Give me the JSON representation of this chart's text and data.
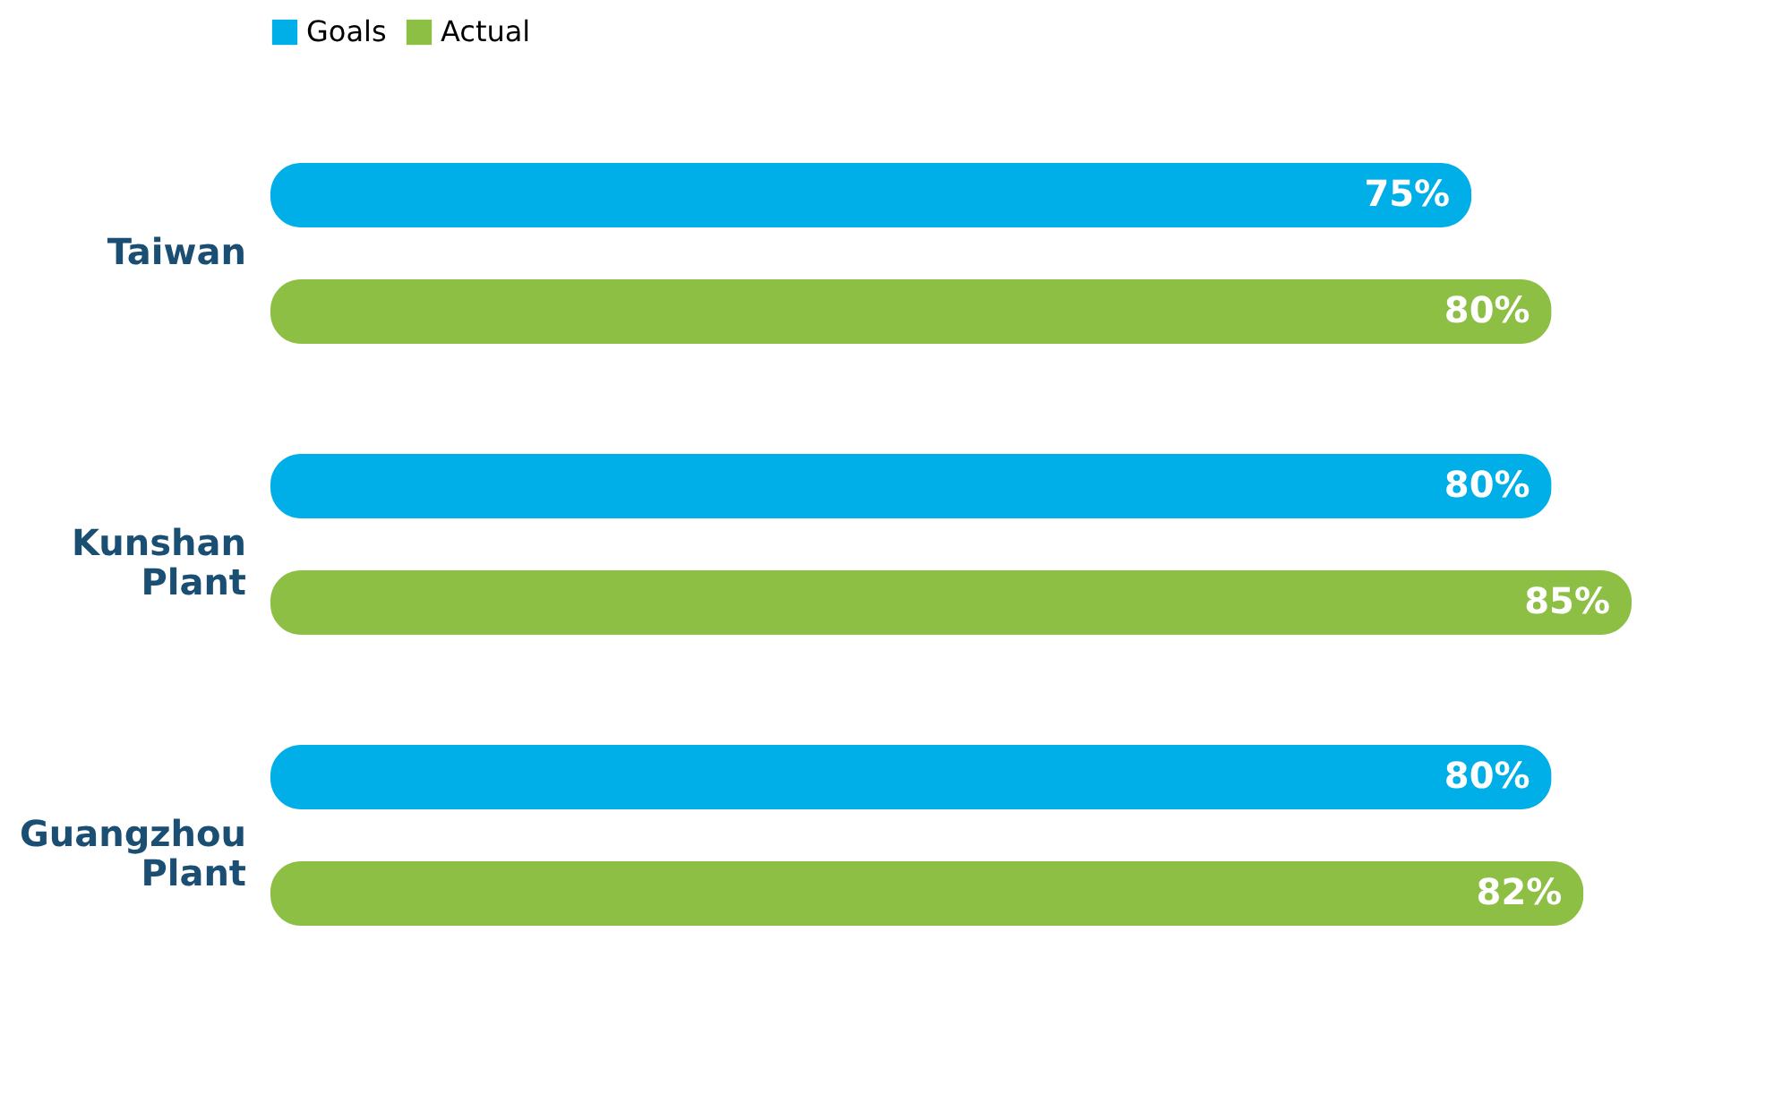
{
  "chart_data": {
    "type": "bar",
    "orientation": "horizontal",
    "categories": [
      "Taiwan",
      "Kunshan Plant",
      "Guangzhou Plant"
    ],
    "series": [
      {
        "name": "Goals",
        "color": "#00aee8",
        "values": [
          75,
          80,
          80
        ],
        "value_labels": [
          "75%",
          "80%",
          "80%"
        ]
      },
      {
        "name": "Actual",
        "color": "#8dbf45",
        "values": [
          80,
          85,
          82
        ],
        "value_labels": [
          "80%",
          "85%",
          "82%"
        ]
      }
    ],
    "tick_labels": "y",
    "legend": "top left"
  }
}
